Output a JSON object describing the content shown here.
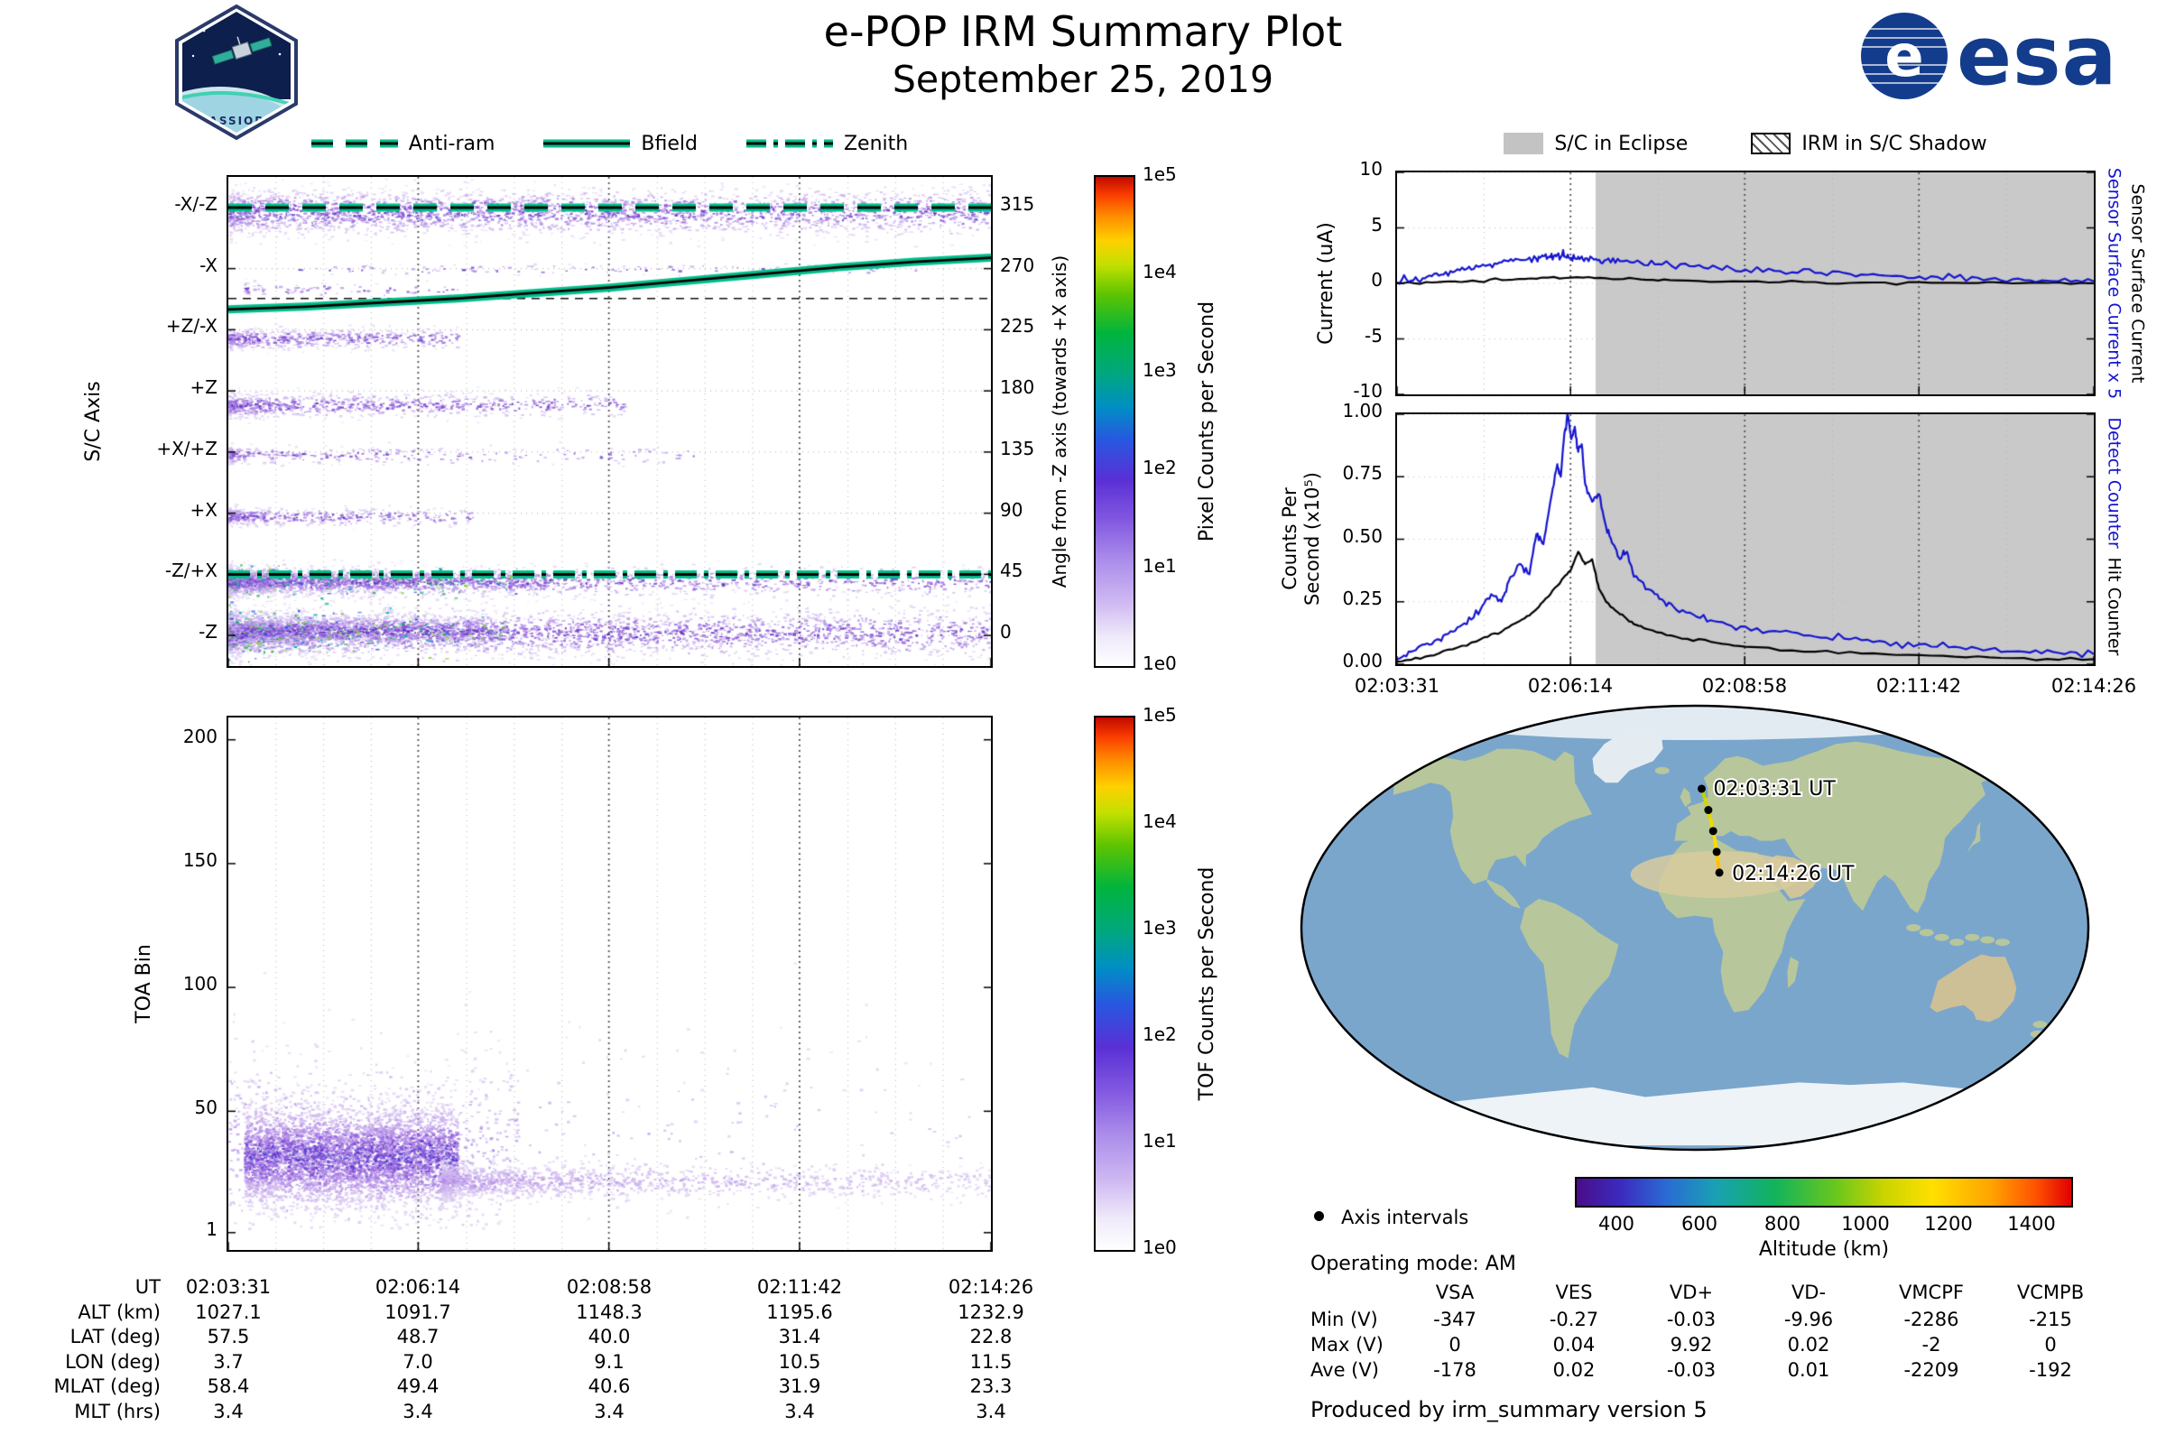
{
  "header": {
    "title": "e-POP IRM Summary Plot",
    "date": "September 25, 2019",
    "cassiope_label": "CASSIOPE",
    "esa_label": "esa"
  },
  "left": {
    "legend": [
      {
        "label": "Anti-ram",
        "style": "dashed"
      },
      {
        "label": "Bfield",
        "style": "solid"
      },
      {
        "label": "Zenith",
        "style": "dashdot"
      }
    ],
    "spectrogram": {
      "ylabel": "S/C Axis",
      "ytick_labels": [
        "-X/-Z",
        "-X",
        "+Z/-X",
        "+Z",
        "+X/+Z",
        "+X",
        "-Z/+X",
        "-Z"
      ],
      "ytick_angles": [
        315,
        270,
        225,
        180,
        135,
        90,
        45,
        0
      ],
      "right_axis_label": "Angle from -Z axis (towards +X axis)",
      "right_ticks": [
        315,
        270,
        225,
        180,
        135,
        90,
        45,
        0
      ],
      "colorbar_label": "Pixel Counts per Second",
      "colorbar_ticks": [
        "1e5",
        "1e4",
        "1e3",
        "1e2",
        "1e1",
        "1e0"
      ]
    },
    "toa": {
      "ylabel": "TOA Bin",
      "yticks": [
        200,
        150,
        100,
        50,
        1
      ],
      "colorbar_label": "TOF Counts per Second",
      "colorbar_ticks": [
        "1e5",
        "1e4",
        "1e3",
        "1e2",
        "1e1",
        "1e0"
      ]
    },
    "table": {
      "row_labels": [
        "UT",
        "ALT (km)",
        "LAT (deg)",
        "LON (deg)",
        "MLAT (deg)",
        "MLT (hrs)"
      ],
      "columns": [
        [
          "02:03:31",
          "1027.1",
          "57.5",
          "3.7",
          "58.4",
          "3.4"
        ],
        [
          "02:06:14",
          "1091.7",
          "48.7",
          "7.0",
          "49.4",
          "3.4"
        ],
        [
          "02:08:58",
          "1148.3",
          "40.0",
          "9.1",
          "40.6",
          "3.4"
        ],
        [
          "02:11:42",
          "1195.6",
          "31.4",
          "10.5",
          "31.9",
          "3.4"
        ],
        [
          "02:14:26",
          "1232.9",
          "22.8",
          "11.5",
          "23.3",
          "3.4"
        ]
      ]
    }
  },
  "right": {
    "legend": [
      {
        "label": "S/C in Eclipse",
        "swatch": "gray"
      },
      {
        "label": "IRM in S/C Shadow",
        "swatch": "hatch"
      }
    ],
    "current_panel": {
      "ylabel": "Current (uA)",
      "yticks": [
        10,
        5,
        0,
        -5,
        -10
      ],
      "right_label_blue": "Sensor Surface Current x 5",
      "right_label_black": "Sensor Surface Current"
    },
    "counts_panel": {
      "ylabel": "Counts Per\nSecond (x10⁵)",
      "ytick_labels": [
        "1.00",
        "0.75",
        "0.50",
        "0.25",
        "0.00"
      ],
      "right_label_blue": "Detect Counter",
      "right_label_black": "Hit Counter",
      "xticks": [
        "02:03:31",
        "02:06:14",
        "02:08:58",
        "02:11:42",
        "02:14:26"
      ]
    },
    "map": {
      "start_label": "02:03:31 UT",
      "end_label": "02:14:26 UT",
      "track": [
        [
          3.7,
          57.5
        ],
        [
          5.5,
          53.1
        ],
        [
          7.0,
          48.7
        ],
        [
          8.1,
          44.4
        ],
        [
          9.1,
          40.0
        ],
        [
          9.9,
          35.7
        ],
        [
          10.5,
          31.4
        ],
        [
          11.0,
          27.1
        ],
        [
          11.5,
          22.8
        ]
      ],
      "track_alt_start": 1027.1,
      "track_alt_end": 1232.9
    },
    "altitude_bar": {
      "legend_label": "Axis intervals",
      "label": "Altitude (km)",
      "ticks": [
        400,
        600,
        800,
        1000,
        1200,
        1400
      ],
      "range": [
        300,
        1500
      ]
    },
    "operating_mode": "Operating mode: AM",
    "voltage_table": {
      "headers": [
        "VSA",
        "VES",
        "VD+",
        "VD-",
        "VMCPF",
        "VCMPB"
      ],
      "rows": [
        {
          "label": "Min (V)",
          "values": [
            "-347",
            "-0.27",
            "-0.03",
            "-9.96",
            "-2286",
            "-215"
          ]
        },
        {
          "label": "Max (V)",
          "values": [
            "0",
            "0.04",
            "9.92",
            "0.02",
            "-2",
            "0"
          ]
        },
        {
          "label": "Ave (V)",
          "values": [
            "-178",
            "0.02",
            "-0.03",
            "0.01",
            "-2209",
            "-192"
          ]
        }
      ]
    },
    "footer": "Produced by irm_summary version 5"
  },
  "chart_data": [
    {
      "id": "sc_axis_spectrogram",
      "type": "heatmap",
      "title": "",
      "ylabel": "S/C Axis",
      "x_range_ut": [
        "02:03:31",
        "02:14:26"
      ],
      "angle_range": [
        -22.5,
        337.5
      ],
      "major_time_fracs": [
        0.249,
        0.499,
        0.749
      ],
      "overlays": {
        "anti_ram_angle": 315,
        "zenith_angle": 45,
        "ref_dashed_angle": 248,
        "bfield_curve": [
          [
            0,
            240
          ],
          [
            0.1,
            242
          ],
          [
            0.2,
            245
          ],
          [
            0.3,
            248
          ],
          [
            0.4,
            252
          ],
          [
            0.5,
            256
          ],
          [
            0.6,
            261
          ],
          [
            0.7,
            266
          ],
          [
            0.8,
            271
          ],
          [
            0.9,
            275
          ],
          [
            1,
            278
          ]
        ]
      },
      "colorbar": {
        "label": "Pixel Counts per Second",
        "ticks": [
          "1e5",
          "1e4",
          "1e3",
          "1e2",
          "1e1",
          "1e0"
        ],
        "scale": "log"
      },
      "noise_bands": [
        {
          "center": 312,
          "halfwidth": 15,
          "x0": 0,
          "x1": 1,
          "points": 3000,
          "falloff": 0.2,
          "hot": false
        },
        {
          "center": 270,
          "halfwidth": 3.5,
          "x0": 0.08,
          "x1": 0.9,
          "points": 130,
          "falloff": 0,
          "hot": false
        },
        {
          "center": 255,
          "halfwidth": 5,
          "x0": 0.02,
          "x1": 0.3,
          "points": 90,
          "falloff": 0.5,
          "hot": false
        },
        {
          "center": 219,
          "halfwidth": 7,
          "x0": 0,
          "x1": 0.3,
          "points": 600,
          "falloff": 0.4,
          "hot": false
        },
        {
          "center": 170,
          "halfwidth": 8,
          "x0": 0,
          "x1": 0.52,
          "points": 900,
          "falloff": 0.5,
          "hot": false
        },
        {
          "center": 133,
          "halfwidth": 6,
          "x0": 0,
          "x1": 0.62,
          "points": 340,
          "falloff": 0.8,
          "hot": false
        },
        {
          "center": 88,
          "halfwidth": 6,
          "x0": 0,
          "x1": 0.32,
          "points": 450,
          "falloff": 0.4,
          "hot": false
        },
        {
          "center": 40,
          "halfwidth": 10,
          "x0": 0,
          "x1": 1,
          "points": 2300,
          "falloff": 0.7,
          "hot": true
        },
        {
          "center": 40,
          "halfwidth": 8,
          "x0": 0.02,
          "x1": 0.42,
          "points": 1000,
          "falloff": 0.3,
          "hot": true
        },
        {
          "center": 2,
          "halfwidth": 16,
          "x0": 0,
          "x1": 1,
          "points": 3800,
          "falloff": 0.4,
          "hot": true
        },
        {
          "center": 4,
          "halfwidth": 10,
          "x0": 0.02,
          "x1": 0.35,
          "points": 1600,
          "falloff": 0.3,
          "hot": true
        }
      ]
    },
    {
      "id": "toa_scatter",
      "type": "scatter",
      "ylabel": "TOA Bin",
      "ylim": [
        -6,
        209
      ],
      "yticks": [
        200,
        150,
        100,
        50,
        1
      ],
      "colorbar": {
        "label": "TOF Counts per Second",
        "ticks": [
          "1e5",
          "1e4",
          "1e3",
          "1e2",
          "1e1",
          "1e0"
        ],
        "scale": "log"
      },
      "clusters": [
        {
          "x0": 0.02,
          "x1": 0.3,
          "yc": 32,
          "ysd": 10,
          "points": 4500,
          "hot": true,
          "falloff": 0
        },
        {
          "x0": 0.0,
          "x1": 0.38,
          "yc": 34,
          "ysd": 19,
          "points": 800,
          "hot": false,
          "falloff": 0
        },
        {
          "x0": 0.28,
          "x1": 1.0,
          "yc": 22,
          "ysd": 3.5,
          "points": 1500,
          "hot": false,
          "falloff": 0.8
        },
        {
          "x0": 0.0,
          "x1": 1.0,
          "yc": 42,
          "ysd": 22,
          "points": 280,
          "hot": false,
          "falloff": 0.3
        }
      ]
    },
    {
      "id": "sensor_current",
      "type": "line",
      "ylabel": "Current (uA)",
      "ylim": [
        -10,
        10
      ],
      "yticks": [
        10,
        5,
        0,
        -5,
        -10
      ],
      "eclipse_start_frac": 0.285,
      "series": [
        {
          "name": "Sensor Surface Current x 5",
          "color": "#1515cf",
          "x": [
            0,
            0.02,
            0.04,
            0.06,
            0.08,
            0.1,
            0.12,
            0.14,
            0.16,
            0.18,
            0.2,
            0.21,
            0.22,
            0.23,
            0.24,
            0.25,
            0.26,
            0.27,
            0.285,
            0.3,
            0.32,
            0.35,
            0.38,
            0.42,
            0.46,
            0.5,
            0.55,
            0.6,
            0.65,
            0.7,
            0.75,
            0.8,
            0.85,
            0.9,
            0.95,
            1.0
          ],
          "y": [
            0.1,
            0.25,
            0.45,
            0.7,
            1.0,
            1.3,
            1.55,
            1.8,
            2.0,
            2.1,
            2.2,
            2.45,
            2.35,
            2.6,
            2.4,
            2.3,
            2.4,
            2.25,
            2.2,
            2.1,
            2.0,
            1.85,
            1.7,
            1.55,
            1.4,
            1.25,
            1.1,
            0.95,
            0.85,
            0.7,
            0.6,
            0.5,
            0.4,
            0.3,
            0.22,
            0.18
          ]
        },
        {
          "name": "Sensor Surface Current",
          "color": "#000000",
          "x": [
            0,
            0.05,
            0.1,
            0.15,
            0.2,
            0.25,
            0.3,
            0.35,
            0.4,
            0.5,
            0.6,
            0.7,
            0.8,
            0.9,
            1.0
          ],
          "y": [
            0.02,
            0.08,
            0.18,
            0.3,
            0.42,
            0.52,
            0.45,
            0.35,
            0.28,
            0.18,
            0.12,
            0.08,
            0.05,
            0.03,
            0.02
          ]
        }
      ]
    },
    {
      "id": "hit_detect_counts",
      "type": "line",
      "ylabel": "Counts Per Second (x10⁵)",
      "ylim": [
        0,
        1.0
      ],
      "eclipse_start_frac": 0.285,
      "xtick_labels": [
        "02:03:31",
        "02:06:14",
        "02:08:58",
        "02:11:42",
        "02:14:26"
      ],
      "series": [
        {
          "name": "Detect Counter",
          "color": "#1515cf",
          "x": [
            0,
            0.02,
            0.04,
            0.06,
            0.08,
            0.1,
            0.12,
            0.135,
            0.15,
            0.16,
            0.175,
            0.19,
            0.2,
            0.21,
            0.22,
            0.23,
            0.235,
            0.24,
            0.245,
            0.25,
            0.255,
            0.26,
            0.265,
            0.27,
            0.28,
            0.29,
            0.3,
            0.31,
            0.32,
            0.33,
            0.34,
            0.36,
            0.38,
            0.4,
            0.43,
            0.46,
            0.5,
            0.55,
            0.6,
            0.65,
            0.7,
            0.75,
            0.8,
            0.85,
            0.9,
            0.95,
            1.0
          ],
          "y": [
            0.02,
            0.05,
            0.08,
            0.1,
            0.13,
            0.16,
            0.22,
            0.28,
            0.25,
            0.33,
            0.4,
            0.36,
            0.52,
            0.48,
            0.65,
            0.8,
            0.75,
            0.92,
            1.0,
            0.9,
            0.95,
            0.85,
            0.88,
            0.72,
            0.65,
            0.68,
            0.55,
            0.48,
            0.42,
            0.45,
            0.35,
            0.3,
            0.26,
            0.22,
            0.19,
            0.17,
            0.15,
            0.13,
            0.11,
            0.1,
            0.09,
            0.08,
            0.07,
            0.06,
            0.05,
            0.045,
            0.04
          ]
        },
        {
          "name": "Hit Counter",
          "color": "#000000",
          "x": [
            0,
            0.04,
            0.08,
            0.12,
            0.15,
            0.18,
            0.2,
            0.22,
            0.24,
            0.25,
            0.26,
            0.27,
            0.28,
            0.29,
            0.3,
            0.32,
            0.34,
            0.36,
            0.4,
            0.45,
            0.5,
            0.6,
            0.7,
            0.8,
            0.9,
            1.0
          ],
          "y": [
            0.01,
            0.03,
            0.06,
            0.1,
            0.13,
            0.18,
            0.22,
            0.28,
            0.35,
            0.38,
            0.45,
            0.4,
            0.42,
            0.3,
            0.25,
            0.2,
            0.16,
            0.14,
            0.11,
            0.09,
            0.07,
            0.05,
            0.04,
            0.03,
            0.025,
            0.02
          ]
        }
      ]
    }
  ]
}
